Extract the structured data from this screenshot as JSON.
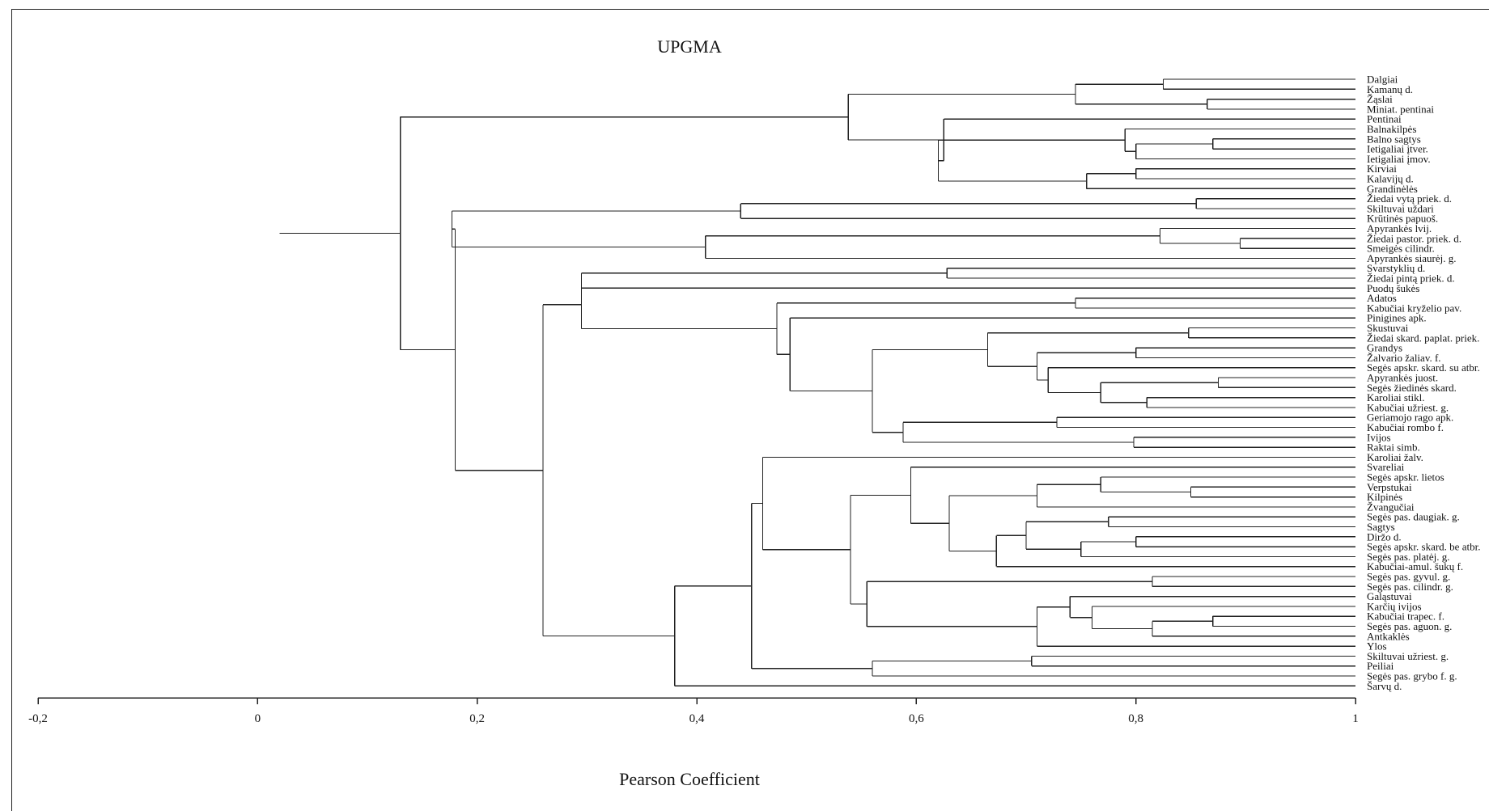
{
  "chart_data": {
    "type": "dendrogram",
    "title": "UPGMA",
    "xlabel": "Pearson Coefficient",
    "xlim": [
      -0.2,
      1.0
    ],
    "xticks": [
      -0.2,
      0,
      0.2,
      0.4,
      0.6,
      0.8,
      1.0
    ],
    "tick_labels": [
      "-0,2",
      "0",
      "0,2",
      "0,4",
      "0,6",
      "0,8",
      "1"
    ],
    "leaves": [
      "Dalgiai",
      "Kamanų d.",
      "Žąslai",
      "Miniat. pentinai",
      "Pentinai",
      "Balnakilpės",
      "Balno sagtys",
      "Ietigaliai įtver.",
      "Ietigaliai įmov.",
      "Kirviai",
      "Kalavijų d.",
      "Grandinėlės",
      "Žiedai vytą priek. d.",
      "Skiltuvai uždari",
      "Krūtinės papuoš.",
      "Apyrankės lvij.",
      "Žiedai pastor. priek. d.",
      "Smeigės cilindr.",
      "Apyrankės siaurėj. g.",
      "Svarstyklių d.",
      "Žiedai pintą priek. d.",
      "Puodų šukės",
      "Adatos",
      "Kabučiai kryželio pav.",
      "Pinigines apk.",
      "Skustuvai",
      "Žiedai skard. paplat. priek.",
      "Grandys",
      "Žalvario žaliav. f.",
      "Segės apskr. skard. su atbr.",
      "Apyrankės juost.",
      "Segės žiedinės skard.",
      "Karoliai stikl.",
      "Kabučiai užriest. g.",
      "Geriamojo rago apk.",
      "Kabučiai rombo f.",
      "Ivijos",
      "Raktai simb.",
      "Karoliai žalv.",
      "Svareliai",
      "Segės apskr. lietos",
      "Verpstukai",
      "Kilpinės",
      "Žvangučiai",
      "Segės pas. daugiak. g.",
      "Sagtys",
      "Diržo d.",
      "Segės apskr. skard. be atbr.",
      "Segės pas. platėj. g.",
      "Kabučiai-amul. šukų f.",
      "Segės pas. gyvul. g.",
      "Segės pas. cilindr. g.",
      "Galąstuvai",
      "Karčių ivijos",
      "Kabučiai trapec. f.",
      "Segės pas. aguon. g.",
      "Antkaklės",
      "Ylos",
      "Skiltuvai užriest. g.",
      "Peiliai",
      "Segės pas. grybo f. g.",
      "Šarvų d."
    ],
    "merges": [
      {
        "id": "c1",
        "a": "Dalgiai",
        "b": "Kamanų d.",
        "height": 0.825
      },
      {
        "id": "c2",
        "a": "Žąslai",
        "b": "Miniat. pentinai",
        "height": 0.865
      },
      {
        "id": "c3",
        "a": "c1",
        "b": "c2",
        "height": 0.745
      },
      {
        "id": "c4",
        "a": "Balno sagtys",
        "b": "Ietigaliai įtver.",
        "height": 0.87
      },
      {
        "id": "c5",
        "a": "c4",
        "b": "Ietigaliai įmov.",
        "height": 0.8
      },
      {
        "id": "c6",
        "a": "Balnakilpės",
        "b": "c5",
        "height": 0.79
      },
      {
        "id": "c7",
        "a": "Kirviai",
        "b": "Kalavijų d.",
        "height": 0.8
      },
      {
        "id": "c8",
        "a": "c7",
        "b": "Grandinėlės",
        "height": 0.755
      },
      {
        "id": "c9",
        "a": "c6",
        "b": "c8",
        "height": 0.62
      },
      {
        "id": "c10",
        "a": "Pentinai",
        "b": "c9",
        "height": 0.625
      },
      {
        "id": "c11",
        "a": "c3",
        "b": "c10",
        "height": 0.538
      },
      {
        "id": "c12",
        "a": "Žiedai vytą priek. d.",
        "b": "Skiltuvai uždari",
        "height": 0.855
      },
      {
        "id": "c13",
        "a": "c12",
        "b": "Krūtinės papuoš.",
        "height": 0.44
      },
      {
        "id": "c14",
        "a": "Žiedai pastor. priek. d.",
        "b": "Smeigės cilindr.",
        "height": 0.895
      },
      {
        "id": "c15",
        "a": "Apyrankės lvij.",
        "b": "c14",
        "height": 0.822
      },
      {
        "id": "c16",
        "a": "c15",
        "b": "Apyrankės siaurėj. g.",
        "height": 0.408
      },
      {
        "id": "c17",
        "a": "c13",
        "b": "c16",
        "height": 0.177
      },
      {
        "id": "c18",
        "a": "Svarstyklių d.",
        "b": "Žiedai pintą priek. d.",
        "height": 0.628
      },
      {
        "id": "c19",
        "a": "Puodų šukės",
        "b": "c18",
        "height": 0.295
      },
      {
        "id": "c20",
        "a": "Adatos",
        "b": "Kabučiai kryželio pav.",
        "height": 0.745
      },
      {
        "id": "c21",
        "a": "Skustuvai",
        "b": "Žiedai skard. paplat. priek.",
        "height": 0.848
      },
      {
        "id": "c22",
        "a": "Grandys",
        "b": "Žalvario žaliav. f.",
        "height": 0.8
      },
      {
        "id": "c23",
        "a": "Apyrankės juost.",
        "b": "Segės žiedinės skard.",
        "height": 0.875
      },
      {
        "id": "c24",
        "a": "Karoliai stikl.",
        "b": "Kabučiai užriest. g.",
        "height": 0.81
      },
      {
        "id": "c25",
        "a": "c23",
        "b": "c24",
        "height": 0.768
      },
      {
        "id": "c26",
        "a": "Segės apskr. skard. su atbr.",
        "b": "c25",
        "height": 0.72
      },
      {
        "id": "c27",
        "a": "c22",
        "b": "c26",
        "height": 0.71
      },
      {
        "id": "c28",
        "a": "c21",
        "b": "c27",
        "height": 0.665
      },
      {
        "id": "c29",
        "a": "Geriamojo rago apk.",
        "b": "Kabučiai rombo f.",
        "height": 0.728
      },
      {
        "id": "c30",
        "a": "Ivijos",
        "b": "Raktai simb.",
        "height": 0.798
      },
      {
        "id": "c31",
        "a": "c29",
        "b": "c30",
        "height": 0.588
      },
      {
        "id": "c32",
        "a": "c28",
        "b": "c31",
        "height": 0.56
      },
      {
        "id": "c33",
        "a": "Pinigines apk.",
        "b": "c32",
        "height": 0.485
      },
      {
        "id": "c34",
        "a": "c20",
        "b": "c33",
        "height": 0.473
      },
      {
        "id": "c35",
        "a": "c19",
        "b": "c34",
        "height": 0.295
      },
      {
        "id": "c36",
        "a": "Verpstukai",
        "b": "Kilpinės",
        "height": 0.85
      },
      {
        "id": "c37",
        "a": "Segės apskr. lietos",
        "b": "c36",
        "height": 0.768
      },
      {
        "id": "c38",
        "a": "c37",
        "b": "Žvangučiai",
        "height": 0.71
      },
      {
        "id": "c39",
        "a": "Segės pas. daugiak. g.",
        "b": "Sagtys",
        "height": 0.775
      },
      {
        "id": "c40",
        "a": "Diržo d.",
        "b": "Segės apskr. skard. be atbr.",
        "height": 0.8
      },
      {
        "id": "c41",
        "a": "c40",
        "b": "Segės pas. platėj. g.",
        "height": 0.75
      },
      {
        "id": "c42",
        "a": "c39",
        "b": "c41",
        "height": 0.7
      },
      {
        "id": "c43",
        "a": "c42",
        "b": "Kabučiai-amul. šukų f.",
        "height": 0.673
      },
      {
        "id": "c44",
        "a": "c38",
        "b": "c43",
        "height": 0.63
      },
      {
        "id": "c45",
        "a": "Svareliai",
        "b": "c44",
        "height": 0.595
      },
      {
        "id": "c46",
        "a": "Segės pas. gyvul. g.",
        "b": "Segės pas. cilindr. g.",
        "height": 0.815
      },
      {
        "id": "c47",
        "a": "Kabučiai trapec. f.",
        "b": "Segės pas. aguon. g.",
        "height": 0.87
      },
      {
        "id": "c48",
        "a": "c47",
        "b": "Antkaklės",
        "height": 0.815
      },
      {
        "id": "c49",
        "a": "Karčių ivijos",
        "b": "c48",
        "height": 0.76
      },
      {
        "id": "c50",
        "a": "Galąstuvai",
        "b": "c49",
        "height": 0.74
      },
      {
        "id": "c51",
        "a": "c50",
        "b": "Ylos",
        "height": 0.71
      },
      {
        "id": "c52",
        "a": "c46",
        "b": "c51",
        "height": 0.555
      },
      {
        "id": "c53",
        "a": "c45",
        "b": "c52",
        "height": 0.54
      },
      {
        "id": "c54",
        "a": "Karoliai žalv.",
        "b": "c53",
        "height": 0.46
      },
      {
        "id": "c55",
        "a": "Skiltuvai užriest. g.",
        "b": "Peiliai",
        "height": 0.705
      },
      {
        "id": "c56",
        "a": "c55",
        "b": "Segės pas. grybo f. g.",
        "height": 0.56
      },
      {
        "id": "c57",
        "a": "c54",
        "b": "c56",
        "height": 0.45
      },
      {
        "id": "c58",
        "a": "c57",
        "b": "Šarvų d.",
        "height": 0.38
      },
      {
        "id": "c59",
        "a": "c35",
        "b": "c58",
        "height": 0.26
      },
      {
        "id": "c60",
        "a": "Svarstyklių d.",
        "b": "Svarstyklių d.",
        "height": null
      },
      {
        "id": "c61",
        "a": "c17",
        "b": "c59",
        "height": 0.18
      },
      {
        "id": "c62",
        "a": "c11",
        "b": "c61",
        "height": 0.13
      },
      {
        "id": "c63",
        "a": "c62",
        "b": "c62",
        "height": null
      }
    ],
    "root": {
      "height": 0.02
    }
  }
}
